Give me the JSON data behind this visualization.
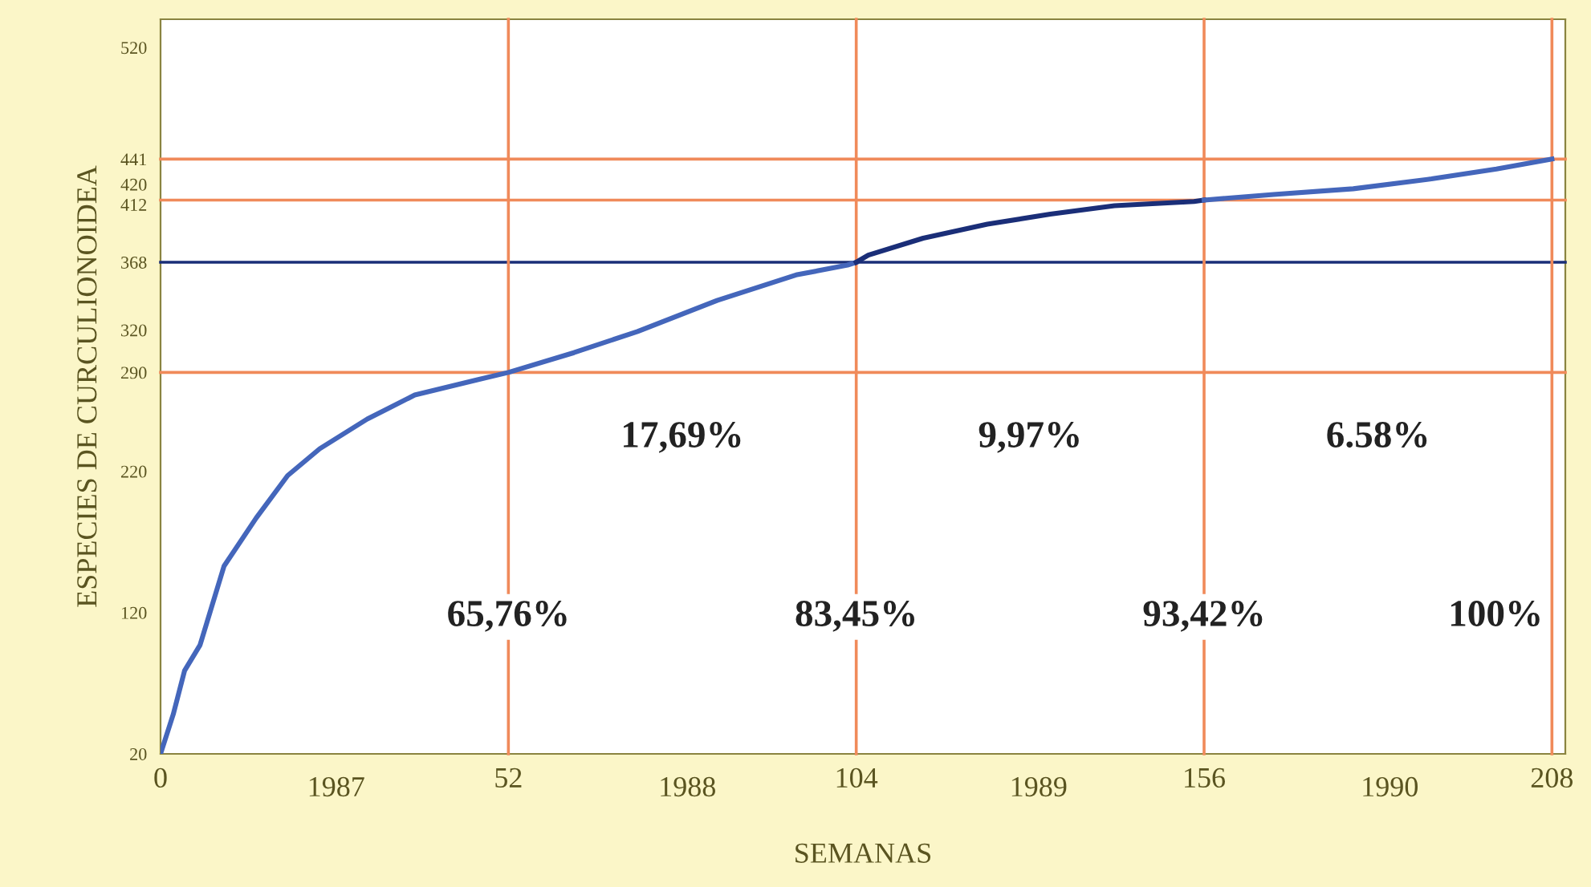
{
  "chart_data": {
    "type": "line",
    "xlabel": "SEMANAS",
    "ylabel": "ESPECIES DE CURCULIONOIDEA",
    "xlim": [
      0,
      210
    ],
    "xticks": [
      0,
      52,
      104,
      156,
      208
    ],
    "x2lim": [
      1986.5,
      1990.5
    ],
    "x2ticks": [
      1987,
      1988,
      1989,
      1990
    ],
    "ylim": [
      20,
      540
    ],
    "yticks": [
      20,
      120,
      220,
      290,
      320,
      368,
      412,
      420,
      441,
      520
    ],
    "grid": false,
    "legend": false,
    "marker": "none",
    "line_style": "solid",
    "series": [
      {
        "color": "#4466bb",
        "x": [
          0,
          1.9,
          3.6,
          5.9,
          9.5,
          14.3,
          19,
          23.8,
          30.9,
          38,
          47.5,
          52,
          61.8,
          71.3,
          83.2,
          95,
          102.7,
          104
        ],
        "values": [
          20,
          48,
          79,
          97,
          153,
          187,
          217,
          236,
          257,
          274,
          285,
          290,
          304,
          319,
          341,
          359,
          366,
          368
        ]
      },
      {
        "color": "#1a2e78",
        "x": [
          104,
          105.8,
          114,
          123.6,
          133,
          142.6,
          154.5,
          156
        ],
        "values": [
          368,
          373,
          385,
          395,
          402,
          408,
          411,
          412
        ]
      },
      {
        "color": "#4466bb",
        "x": [
          156,
          166.4,
          178.3,
          190,
          199.7,
          208
        ],
        "values": [
          412,
          416,
          420,
          427,
          434,
          441
        ]
      }
    ],
    "ref_lines": [
      {
        "axis": "y",
        "value": 441,
        "color": "#f08a5a"
      },
      {
        "axis": "y",
        "value": 412,
        "color": "#f08a5a"
      },
      {
        "axis": "y",
        "value": 368,
        "color": "#1a2e78"
      },
      {
        "axis": "y",
        "value": 290,
        "color": "#f08a5a"
      },
      {
        "axis": "x",
        "value": 52,
        "color": "#f08a5a"
      },
      {
        "axis": "x",
        "value": 104,
        "color": "#f08a5a"
      },
      {
        "axis": "x",
        "value": 156,
        "color": "#f08a5a"
      },
      {
        "axis": "x",
        "value": 208,
        "color": "#f08a5a"
      }
    ],
    "annotations": [
      "17,69%",
      "9,97%",
      "6.58%",
      {
        "text": "65,76%",
        "x": 52,
        "y": 117
      },
      {
        "text": "83,45%",
        "x": 104,
        "y": 117
      },
      {
        "text": "93,42%",
        "x": 156,
        "y": 117
      },
      {
        "text": "100%",
        "x": 208,
        "y": 117
      }
    ]
  }
}
